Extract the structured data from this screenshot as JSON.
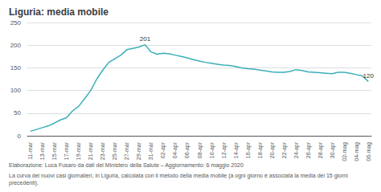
{
  "chart_data": {
    "type": "line",
    "title": "Liguria: media mobile",
    "color": "#3AAFB8",
    "categories": [
      "11-mar",
      null,
      "13-mar",
      null,
      "15-mar",
      null,
      "17-mar",
      null,
      "19-mar",
      null,
      "21-mar",
      null,
      "23-mar",
      null,
      "25-mar",
      null,
      "27-mar",
      null,
      "29-mar",
      null,
      "31-mar",
      null,
      "02-apr",
      null,
      "04-apr",
      null,
      "06-apr",
      null,
      "08-apr",
      null,
      "10-apr",
      null,
      "12-apr",
      null,
      "14-apr",
      null,
      "16-apr",
      null,
      "18-apr",
      null,
      "20-apr",
      null,
      "22-apr",
      null,
      "24-apr",
      null,
      "26-apr",
      null,
      "28-apr",
      null,
      "30-apr",
      null,
      "02-mag",
      null,
      "04-mag",
      null,
      "06-mag"
    ],
    "values": [
      10,
      14,
      18,
      22,
      28,
      35,
      40,
      55,
      65,
      82,
      100,
      125,
      145,
      162,
      170,
      178,
      190,
      193,
      196,
      201,
      185,
      180,
      182,
      181,
      178,
      175,
      172,
      168,
      165,
      162,
      160,
      158,
      156,
      155,
      153,
      150,
      148,
      147,
      145,
      143,
      141,
      140,
      140,
      142,
      146,
      144,
      141,
      140,
      139,
      138,
      137,
      140,
      140,
      138,
      135,
      132,
      120
    ],
    "ylim": [
      0,
      250
    ],
    "yticks": [
      0,
      50,
      100,
      150,
      200,
      250
    ],
    "grid": true,
    "annotations": [
      {
        "text": "201",
        "index": 19
      },
      {
        "text": "120",
        "index": 56
      }
    ],
    "footnotes": [
      "Elaborazione: Luca Fusaro da dati del Ministero della Salute – Aggiornamento: 6 maggio 2020",
      "La curva dei nuovi casi giornalieri, in Liguria, calcolata con il metodo della media mobile (a ogni giorno è associata la media dei 15 giorni precedenti)."
    ]
  }
}
